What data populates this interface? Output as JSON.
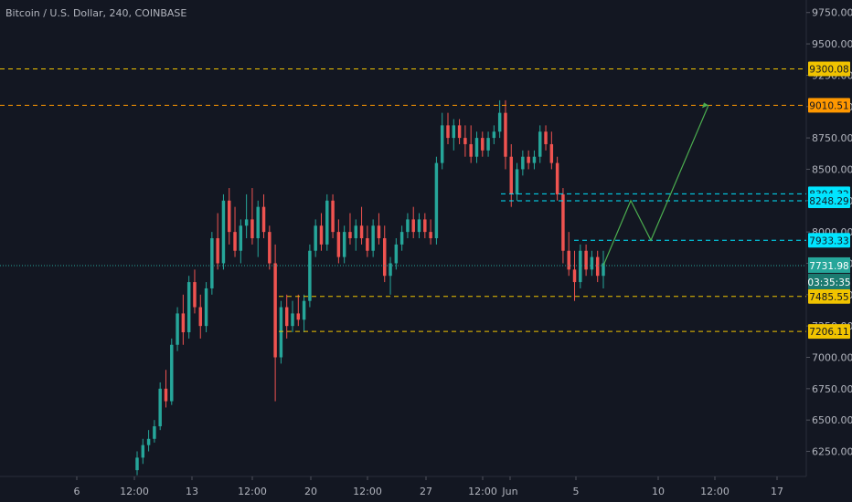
{
  "header": {
    "symbol_title": "Bitcoin / U.S. Dollar, 240, COINBASE"
  },
  "colors": {
    "background": "#131722",
    "up": "#26a69a",
    "down": "#ef5350",
    "axis_text": "#b2b5be",
    "orange_line": "#ff9800",
    "yellow_line": "#f0c300",
    "cyan_line": "#00e5ff",
    "green_arrow": "#4caf50",
    "price_line": "#26a69a"
  },
  "chart_data": {
    "type": "candlestick",
    "y_axis": {
      "position": "right",
      "ylim": [
        6050,
        9850
      ],
      "ticks": [
        "9750.00",
        "9500.00",
        "9250.00",
        "9000.00",
        "8750.00",
        "8500.00",
        "8250.00",
        "8000.00",
        "7750.00",
        "7500.00",
        "7250.00",
        "7000.00",
        "6750.00",
        "6500.00",
        "6250.00"
      ]
    },
    "x_axis": {
      "tick_labels": [
        "6",
        "12:00",
        "13",
        "12:00",
        "20",
        "12:00",
        "27",
        "12:00",
        "Jun",
        "5",
        "10",
        "12:00",
        "17"
      ]
    },
    "series_ohlc": [
      [
        6100,
        6250,
        6060,
        6200
      ],
      [
        6200,
        6350,
        6150,
        6300
      ],
      [
        6300,
        6420,
        6250,
        6350
      ],
      [
        6350,
        6500,
        6320,
        6450
      ],
      [
        6450,
        6800,
        6420,
        6750
      ],
      [
        6750,
        6900,
        6600,
        6650
      ],
      [
        6650,
        7150,
        6620,
        7100
      ],
      [
        7100,
        7400,
        7050,
        7350
      ],
      [
        7350,
        7500,
        7100,
        7200
      ],
      [
        7200,
        7650,
        7150,
        7600
      ],
      [
        7600,
        7700,
        7350,
        7400
      ],
      [
        7400,
        7500,
        7150,
        7250
      ],
      [
        7250,
        7600,
        7200,
        7550
      ],
      [
        7550,
        8000,
        7500,
        7950
      ],
      [
        7950,
        8150,
        7700,
        7750
      ],
      [
        7750,
        8300,
        7700,
        8250
      ],
      [
        8250,
        8350,
        7900,
        8000
      ],
      [
        8000,
        8200,
        7800,
        7850
      ],
      [
        7850,
        8100,
        7750,
        8050
      ],
      [
        8050,
        8300,
        7950,
        8100
      ],
      [
        8100,
        8350,
        7900,
        7950
      ],
      [
        7950,
        8250,
        7800,
        8200
      ],
      [
        8200,
        8300,
        7950,
        8000
      ],
      [
        8000,
        8050,
        7700,
        7750
      ],
      [
        7750,
        7900,
        6650,
        7000
      ],
      [
        7000,
        7450,
        6950,
        7400
      ],
      [
        7400,
        7500,
        7150,
        7250
      ],
      [
        7250,
        7450,
        7200,
        7350
      ],
      [
        7350,
        7500,
        7250,
        7300
      ],
      [
        7300,
        7500,
        7200,
        7450
      ],
      [
        7450,
        7900,
        7400,
        7850
      ],
      [
        7850,
        8100,
        7800,
        8050
      ],
      [
        8050,
        8150,
        7850,
        7900
      ],
      [
        7900,
        8300,
        7850,
        8250
      ],
      [
        8250,
        8300,
        7950,
        8000
      ],
      [
        8000,
        8100,
        7750,
        7800
      ],
      [
        7800,
        8050,
        7750,
        8000
      ],
      [
        8000,
        8150,
        7900,
        7950
      ],
      [
        7950,
        8100,
        7850,
        8050
      ],
      [
        8050,
        8200,
        7900,
        7950
      ],
      [
        7950,
        8050,
        7800,
        7850
      ],
      [
        7850,
        8100,
        7800,
        8050
      ],
      [
        8050,
        8150,
        7900,
        7950
      ],
      [
        7950,
        8050,
        7600,
        7650
      ],
      [
        7650,
        7800,
        7500,
        7750
      ],
      [
        7750,
        7950,
        7700,
        7900
      ],
      [
        7900,
        8050,
        7850,
        8000
      ],
      [
        8000,
        8150,
        7950,
        8100
      ],
      [
        8100,
        8200,
        7950,
        8000
      ],
      [
        8000,
        8150,
        7950,
        8100
      ],
      [
        8100,
        8150,
        7950,
        8000
      ],
      [
        8000,
        8100,
        7900,
        7950
      ],
      [
        7950,
        8600,
        7900,
        8550
      ],
      [
        8550,
        8950,
        8500,
        8850
      ],
      [
        8850,
        8950,
        8700,
        8750
      ],
      [
        8750,
        8900,
        8650,
        8850
      ],
      [
        8850,
        8900,
        8700,
        8750
      ],
      [
        8750,
        8850,
        8600,
        8700
      ],
      [
        8700,
        8850,
        8550,
        8600
      ],
      [
        8600,
        8800,
        8550,
        8750
      ],
      [
        8750,
        8800,
        8600,
        8650
      ],
      [
        8650,
        8800,
        8600,
        8750
      ],
      [
        8750,
        8850,
        8700,
        8800
      ],
      [
        8800,
        9050,
        8750,
        8950
      ],
      [
        8950,
        9050,
        8500,
        8600
      ],
      [
        8600,
        8700,
        8200,
        8300
      ],
      [
        8300,
        8550,
        8250,
        8500
      ],
      [
        8500,
        8650,
        8450,
        8600
      ],
      [
        8600,
        8650,
        8500,
        8550
      ],
      [
        8550,
        8650,
        8500,
        8600
      ],
      [
        8600,
        8850,
        8550,
        8800
      ],
      [
        8800,
        8850,
        8650,
        8700
      ],
      [
        8700,
        8800,
        8500,
        8550
      ],
      [
        8550,
        8600,
        8250,
        8300
      ],
      [
        8300,
        8350,
        7750,
        7850
      ],
      [
        7850,
        8000,
        7650,
        7700
      ],
      [
        7700,
        7850,
        7450,
        7600
      ],
      [
        7600,
        7900,
        7550,
        7850
      ],
      [
        7850,
        7900,
        7650,
        7700
      ],
      [
        7700,
        7850,
        7650,
        7800
      ],
      [
        7800,
        7850,
        7600,
        7650
      ],
      [
        7650,
        7850,
        7550,
        7750
      ]
    ],
    "horizontal_levels": [
      {
        "label": "9300.08",
        "value": 9300.08,
        "style": "yellow"
      },
      {
        "label": "9010.51",
        "value": 9010.51,
        "style": "orange"
      },
      {
        "label": "8304.32",
        "value": 8304.32,
        "style": "cyan"
      },
      {
        "label": "8248.29",
        "value": 8248.29,
        "style": "cyan"
      },
      {
        "label": "7933.33",
        "value": 7933.33,
        "style": "cyan"
      },
      {
        "label": "7485.55",
        "value": 7485.55,
        "style": "yellow"
      },
      {
        "label": "7206.11",
        "value": 7206.11,
        "style": "yellow"
      }
    ],
    "current_price": {
      "label": "7731.98",
      "value": 7731.98,
      "countdown": "03:35:35"
    },
    "projection_path": [
      7731.98,
      8250,
      7933.33,
      9010.51
    ]
  }
}
